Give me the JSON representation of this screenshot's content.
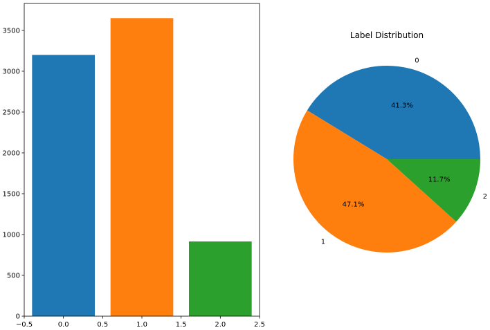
{
  "chart_data": [
    {
      "type": "bar",
      "x": [
        0,
        1,
        2
      ],
      "values": [
        3200,
        3650,
        915
      ],
      "colors": [
        "#1f77b4",
        "#ff7f0e",
        "#2ca02c"
      ],
      "bar_width": 0.8,
      "xlim": [
        -0.5,
        2.5
      ],
      "ylim": [
        0,
        3830
      ],
      "xticks": [
        -0.5,
        0.0,
        0.5,
        1.0,
        1.5,
        2.0,
        2.5
      ],
      "xtick_labels": [
        "−0.5",
        "0.0",
        "0.5",
        "1.0",
        "1.5",
        "2.0",
        "2.5"
      ],
      "yticks": [
        0,
        500,
        1000,
        1500,
        2000,
        2500,
        3000,
        3500
      ],
      "ytick_labels": [
        "0",
        "500",
        "1000",
        "1500",
        "2000",
        "2500",
        "3000",
        "3500"
      ],
      "grid": false
    },
    {
      "type": "pie",
      "title": "Label Distribution",
      "labels": [
        "0",
        "1",
        "2"
      ],
      "values": [
        41.3,
        47.1,
        11.7
      ],
      "pct_labels": [
        "41.3%",
        "47.1%",
        "11.7%"
      ],
      "colors": [
        "#1f77b4",
        "#ff7f0e",
        "#2ca02c"
      ],
      "start_angle_deg": 0,
      "direction": "counterclockwise"
    }
  ]
}
